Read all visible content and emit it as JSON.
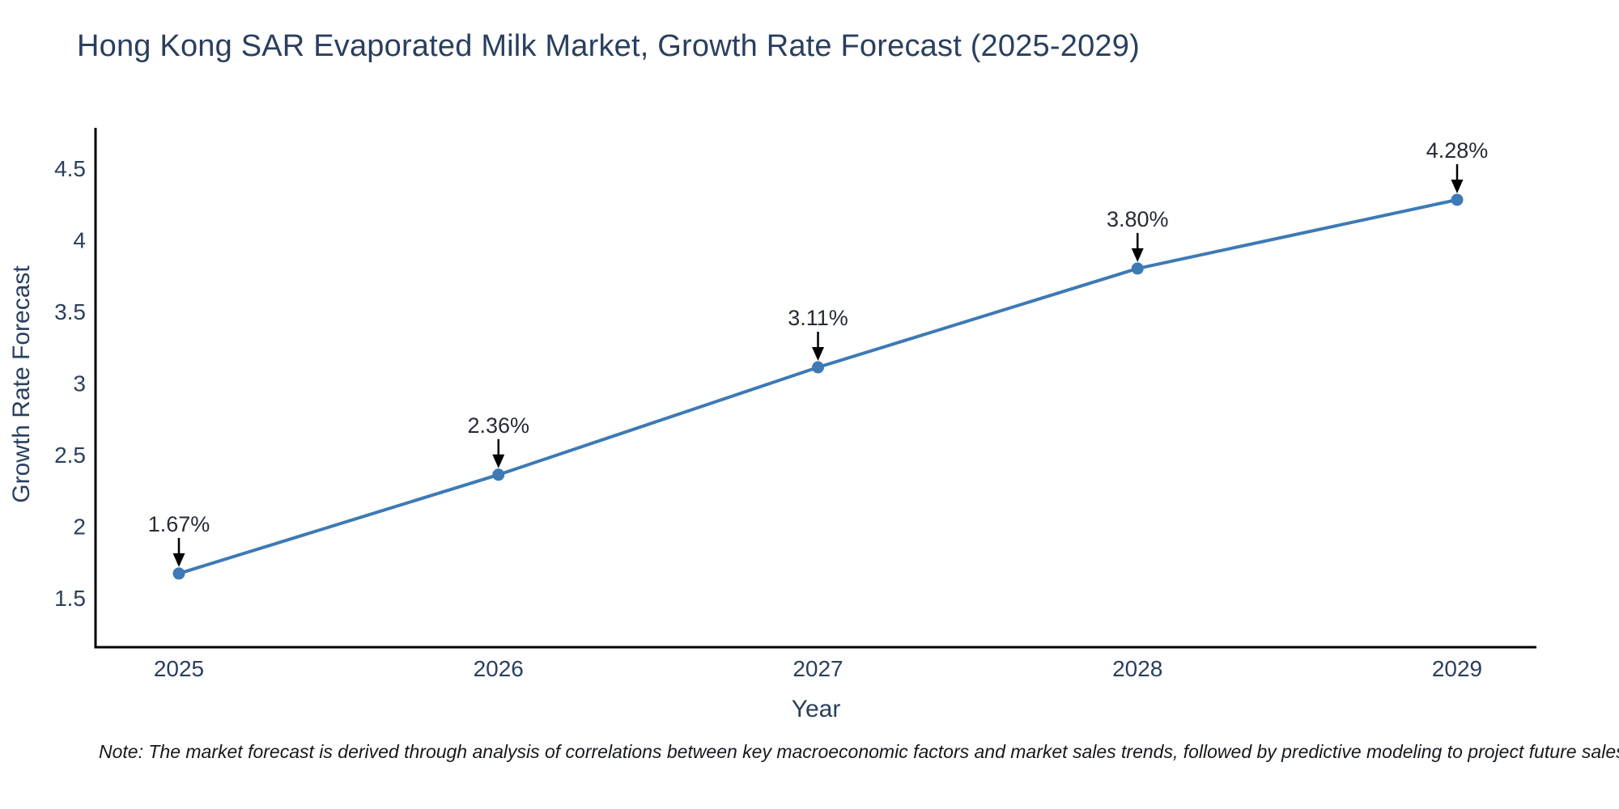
{
  "title": "Hong Kong SAR Evaporated Milk Market, Growth Rate Forecast (2025-2029)",
  "note": "Note: The market forecast is derived through analysis of correlations between key macroeconomic factors and market sales trends, followed by predictive modeling to project future sales",
  "chart_data": {
    "type": "line",
    "title": "Hong Kong SAR Evaporated Milk Market, Growth Rate Forecast (2025-2029)",
    "xlabel": "Year",
    "ylabel": "Growth Rate Forecast",
    "x": [
      2025,
      2026,
      2027,
      2028,
      2029
    ],
    "y": [
      1.67,
      2.36,
      3.11,
      3.8,
      4.28
    ],
    "point_labels": [
      "1.67%",
      "2.36%",
      "3.11%",
      "3.80%",
      "4.28%"
    ],
    "xticks": [
      "2025",
      "2026",
      "2027",
      "2028",
      "2029"
    ],
    "yticks": [
      "4.5",
      "4",
      "3.5",
      "3",
      "2.5",
      "2",
      "1.5"
    ],
    "ytick_values": [
      4.5,
      4.0,
      3.5,
      3.0,
      2.5,
      2.0,
      1.5
    ],
    "ylim": [
      1.15,
      4.77
    ],
    "grid": false,
    "legend_position": "none",
    "marker": "circle",
    "annotation_style": "label-with-down-arrow"
  },
  "colors": {
    "line": "#3d7ab5",
    "marker": "#3d7ab5",
    "axis": "#000000",
    "text": "#2a3f5f",
    "annotation_text": "#262b36",
    "arrow": "#000000",
    "background": "#ffffff"
  }
}
